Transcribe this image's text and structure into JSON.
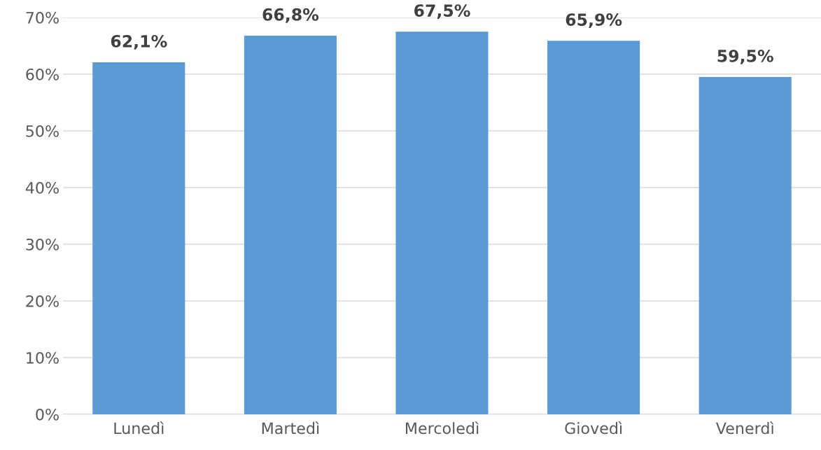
{
  "chart_data": {
    "type": "bar",
    "categories": [
      "Lunedì",
      "Martedì",
      "Mercoledì",
      "Giovedì",
      "Venerdì"
    ],
    "values": [
      62.1,
      66.8,
      67.5,
      65.9,
      59.5
    ],
    "value_labels": [
      "62,1%",
      "66,8%",
      "67,5%",
      "65,9%",
      "59,5%"
    ],
    "color": "#5b9bd5",
    "ylim": [
      0,
      70
    ],
    "yticks": [
      {
        "value": 0,
        "label": "0%"
      },
      {
        "value": 10,
        "label": "10%"
      },
      {
        "value": 20,
        "label": "20%"
      },
      {
        "value": 30,
        "label": "30%"
      },
      {
        "value": 40,
        "label": "40%"
      },
      {
        "value": 50,
        "label": "50%"
      },
      {
        "value": 60,
        "label": "60%"
      },
      {
        "value": 70,
        "label": "70%"
      }
    ],
    "grid": "y"
  }
}
